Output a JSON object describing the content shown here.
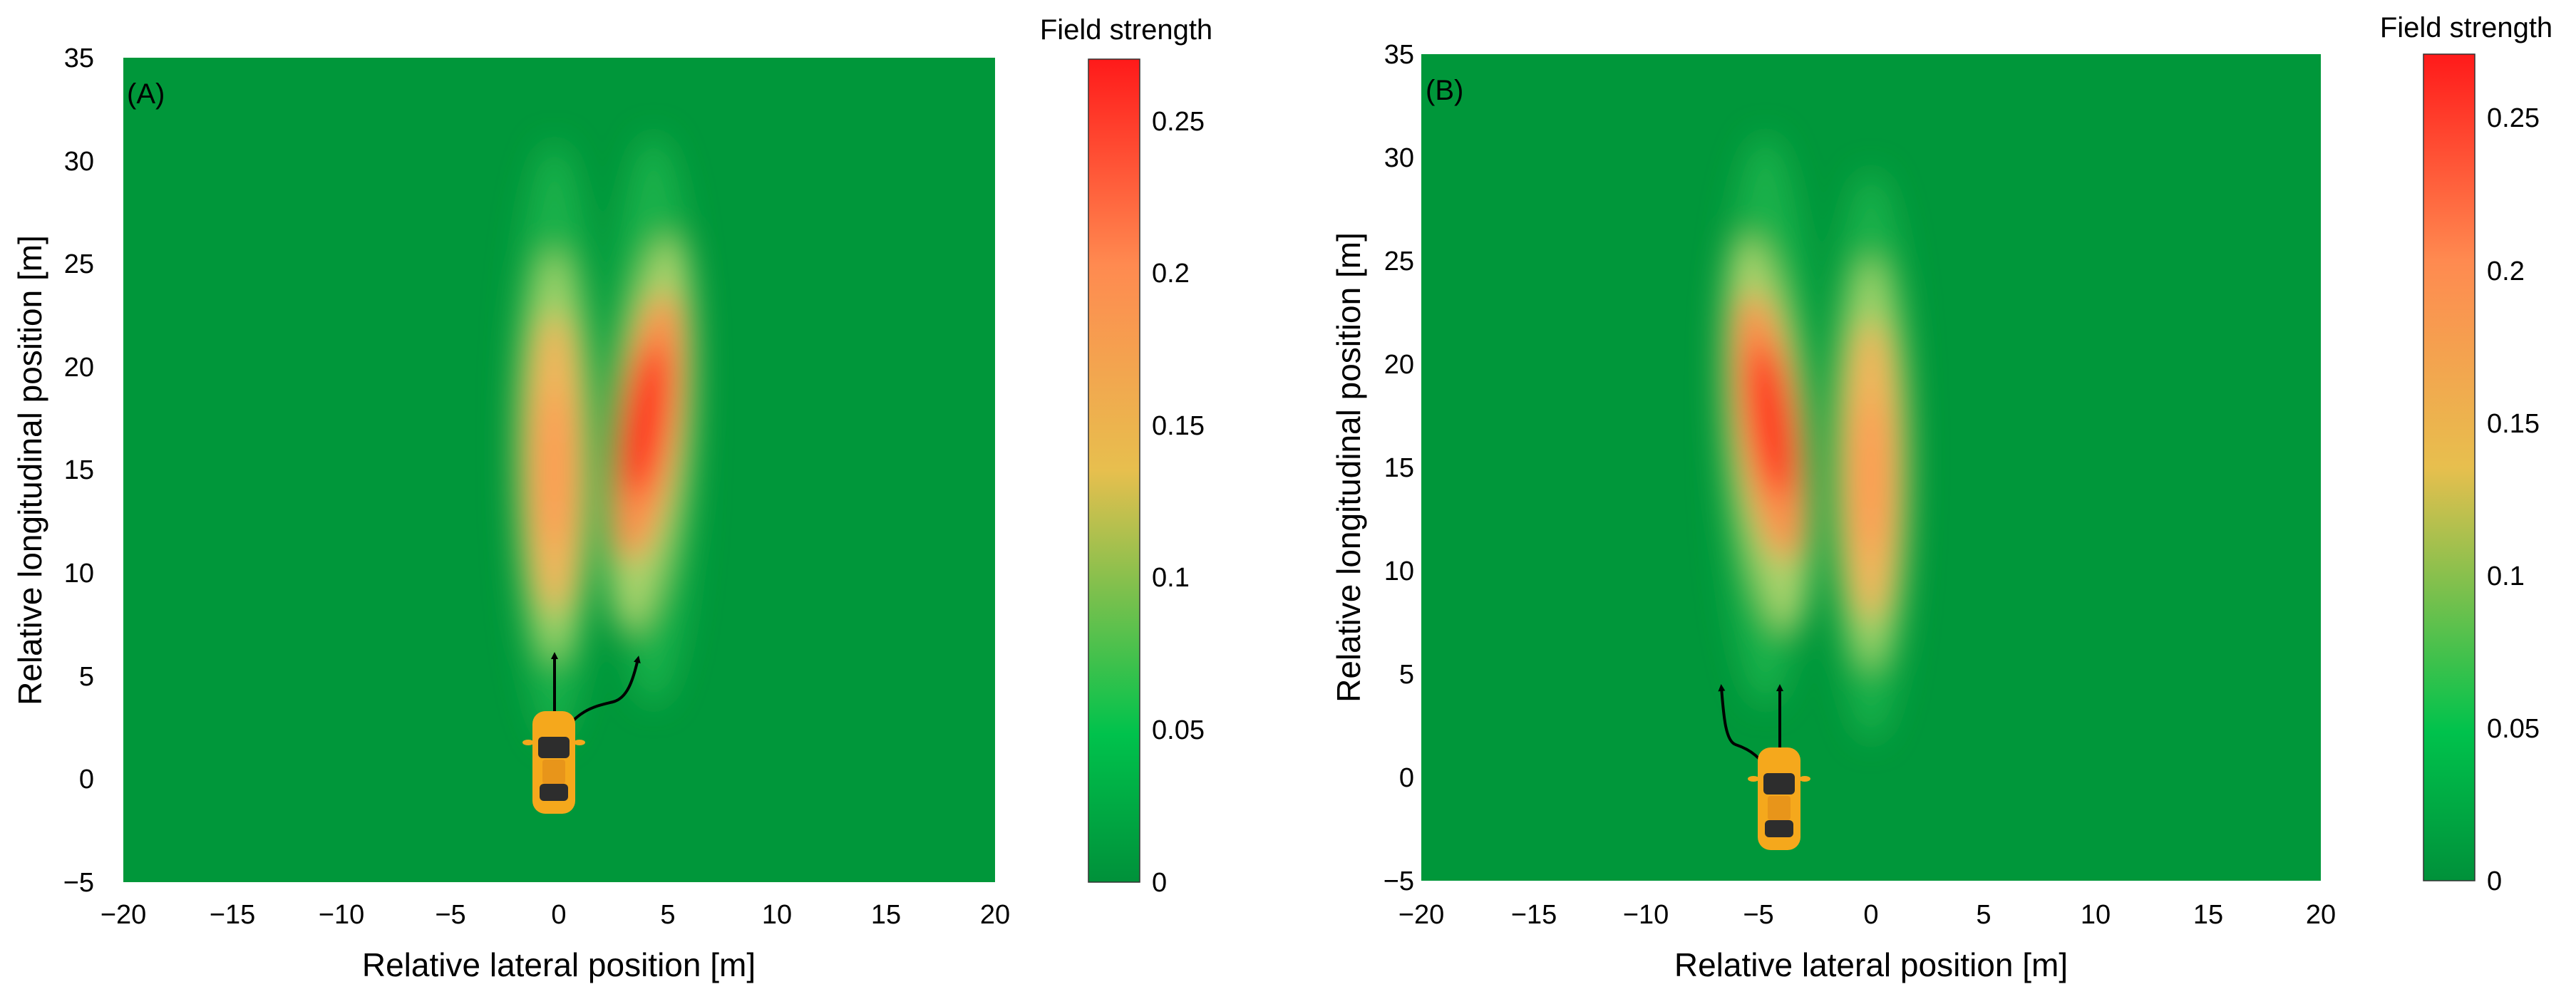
{
  "figure": {
    "panels": [
      {
        "tag": "(A)",
        "xlabel": "Relative lateral position [m]",
        "ylabel": "Relative longitudinal position [m]",
        "xticks": [
          "−20",
          "−15",
          "−10",
          "−5",
          "0",
          "5",
          "10",
          "15",
          "20"
        ],
        "yticks": [
          "−5",
          "0",
          "5",
          "10",
          "15",
          "20",
          "25",
          "30",
          "35"
        ],
        "colorbar": {
          "title": "Field strength",
          "ticks": [
            "0.25",
            "0.2",
            "0.15",
            "0.1",
            "0.05",
            "0"
          ]
        },
        "vehicle_icon": "car-icon"
      },
      {
        "tag": "(B)",
        "xlabel": "Relative lateral position [m]",
        "ylabel": "Relative longitudinal position [m]",
        "xticks": [
          "−20",
          "−15",
          "−10",
          "−5",
          "0",
          "5",
          "10",
          "15",
          "20"
        ],
        "yticks": [
          "−5",
          "0",
          "5",
          "10",
          "15",
          "20",
          "25",
          "30",
          "35"
        ],
        "colorbar": {
          "title": "Field strength",
          "ticks": [
            "0.25",
            "0.2",
            "0.15",
            "0.1",
            "0.05",
            "0"
          ]
        },
        "vehicle_icon": "car-icon"
      }
    ]
  },
  "chart_data": [
    {
      "type": "heatmap",
      "title": "(A)",
      "xlabel": "Relative lateral position [m]",
      "ylabel": "Relative longitudinal position [m]",
      "xlim": [
        -20,
        20
      ],
      "ylim": [
        -5,
        35
      ],
      "x_ticks": [
        -20,
        -15,
        -10,
        -5,
        0,
        5,
        10,
        15,
        20
      ],
      "y_ticks": [
        -5,
        0,
        5,
        10,
        15,
        20,
        25,
        30,
        35
      ],
      "colorbar": {
        "label": "Field strength",
        "range": [
          0,
          0.27
        ],
        "ticks": [
          0,
          0.05,
          0.1,
          0.15,
          0.2,
          0.25
        ],
        "colormap": [
          "#00913a",
          "#00c24c",
          "#e7bf4e",
          "#ff8a50",
          "#ff1a1a"
        ]
      },
      "field_peaks": [
        {
          "lateral": 0,
          "longitudinal": 15,
          "peak_strength": 0.2
        },
        {
          "lateral": 4.5,
          "longitudinal": 17.5,
          "peak_strength": 0.27
        }
      ],
      "ego_vehicle": {
        "lateral": 0,
        "longitudinal": 1
      },
      "trajectories": [
        {
          "name": "straight",
          "points": [
            [
              0,
              2
            ],
            [
              0,
              6.5
            ]
          ]
        },
        {
          "name": "lane change right",
          "points": [
            [
              0,
              2
            ],
            [
              0.8,
              3.2
            ],
            [
              2.5,
              3.6
            ],
            [
              4,
              6.3
            ]
          ]
        }
      ]
    },
    {
      "type": "heatmap",
      "title": "(B)",
      "xlabel": "Relative lateral position [m]",
      "ylabel": "Relative longitudinal position [m]",
      "xlim": [
        -20,
        20
      ],
      "ylim": [
        -5,
        35
      ],
      "x_ticks": [
        -20,
        -15,
        -10,
        -5,
        0,
        5,
        10,
        15,
        20
      ],
      "y_ticks": [
        -5,
        0,
        5,
        10,
        15,
        20,
        25,
        30,
        35
      ],
      "colorbar": {
        "label": "Field strength",
        "range": [
          0,
          0.27
        ],
        "ticks": [
          0,
          0.05,
          0.1,
          0.15,
          0.2,
          0.25
        ],
        "colormap": [
          "#00913a",
          "#00c24c",
          "#e7bf4e",
          "#ff8a50",
          "#ff1a1a"
        ]
      },
      "field_peaks": [
        {
          "lateral": -5,
          "longitudinal": 17.5,
          "peak_strength": 0.27
        },
        {
          "lateral": 0,
          "longitudinal": 15,
          "peak_strength": 0.2
        }
      ],
      "ego_vehicle": {
        "lateral": -4.5,
        "longitudinal": -1
      },
      "trajectories": [
        {
          "name": "straight",
          "points": [
            [
              -4.5,
              0
            ],
            [
              -4.5,
              4.8
            ]
          ]
        },
        {
          "name": "lane change left",
          "points": [
            [
              -4.5,
              0
            ],
            [
              -5.5,
              1.8
            ],
            [
              -6.5,
              2
            ],
            [
              -7.2,
              4.7
            ]
          ]
        }
      ]
    }
  ]
}
